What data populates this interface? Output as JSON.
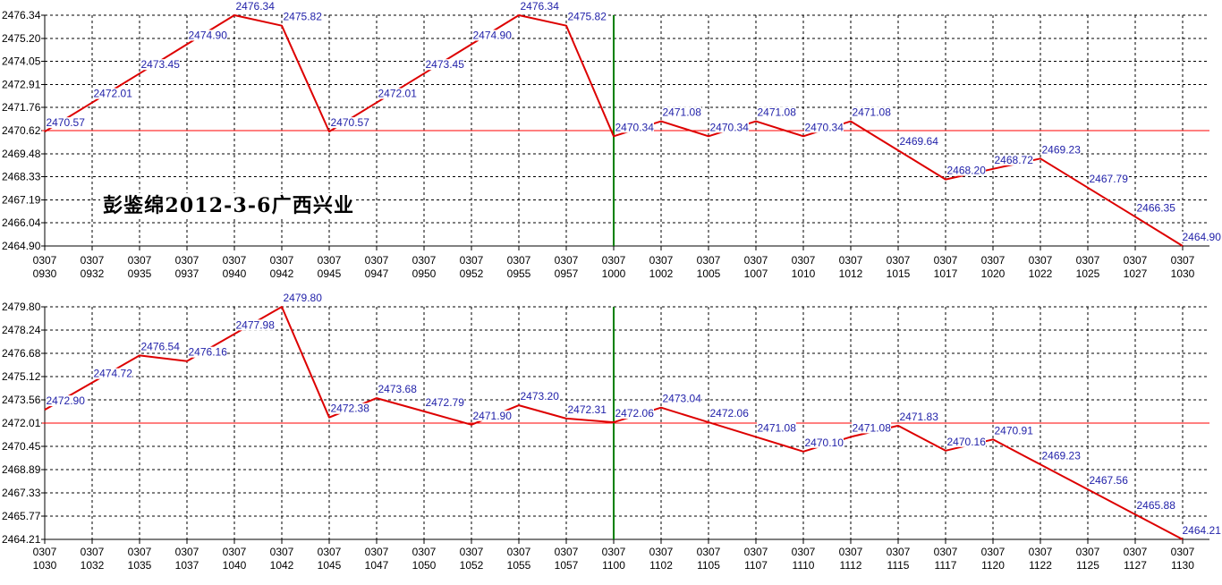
{
  "colors": {
    "series_line": "#dd0000",
    "center_line_horizontal": "#ff0000",
    "center_line_vertical": "#008000",
    "data_labels": "#1f1fa8",
    "background": "#ffffff"
  },
  "chart_data": [
    {
      "type": "line",
      "date": "0307",
      "x": [
        "0930",
        "0932",
        "0935",
        "0937",
        "0940",
        "0942",
        "0945",
        "0947",
        "0950",
        "0952",
        "0955",
        "0957",
        "1000",
        "1002",
        "1005",
        "1007",
        "1010",
        "1012",
        "1015",
        "1017",
        "1020",
        "1022",
        "1025",
        "1027",
        "1030"
      ],
      "values": [
        2470.57,
        2472.01,
        2473.45,
        2474.9,
        2476.34,
        2475.82,
        2470.57,
        2472.01,
        2473.45,
        2474.9,
        2476.34,
        2475.82,
        2470.34,
        2471.08,
        2470.34,
        2471.08,
        2470.34,
        2471.08,
        2469.64,
        2468.2,
        2468.72,
        2469.23,
        2467.79,
        2466.35,
        2464.9
      ],
      "y_ticks": [
        "2476.34",
        "2475.20",
        "2474.05",
        "2472.91",
        "2471.76",
        "2470.62",
        "2469.48",
        "2468.33",
        "2467.19",
        "2466.04",
        "2464.90"
      ],
      "ylim": [
        2464.9,
        2476.34
      ],
      "grid": true,
      "annotation": "彭鉴绵2012-3-6广西兴业"
    },
    {
      "type": "line",
      "date": "0307",
      "x": [
        "1030",
        "1032",
        "1035",
        "1037",
        "1040",
        "1042",
        "1045",
        "1047",
        "1050",
        "1052",
        "1055",
        "1057",
        "1100",
        "1102",
        "1105",
        "1107",
        "1110",
        "1112",
        "1115",
        "1117",
        "1120",
        "1122",
        "1125",
        "1127",
        "1130"
      ],
      "values": [
        2472.9,
        2474.72,
        2476.54,
        2476.16,
        2477.98,
        2479.8,
        2472.38,
        2473.68,
        2472.79,
        2471.9,
        2473.2,
        2472.31,
        2472.06,
        2473.04,
        2472.06,
        2471.08,
        2470.1,
        2471.08,
        2471.83,
        2470.16,
        2470.91,
        2469.23,
        2467.56,
        2465.88,
        2464.21
      ],
      "y_ticks": [
        "2479.80",
        "2478.24",
        "2476.68",
        "2475.12",
        "2473.56",
        "2472.01",
        "2470.45",
        "2468.89",
        "2467.33",
        "2465.77",
        "2464.21"
      ],
      "ylim": [
        2464.21,
        2479.8
      ],
      "grid": true
    }
  ]
}
